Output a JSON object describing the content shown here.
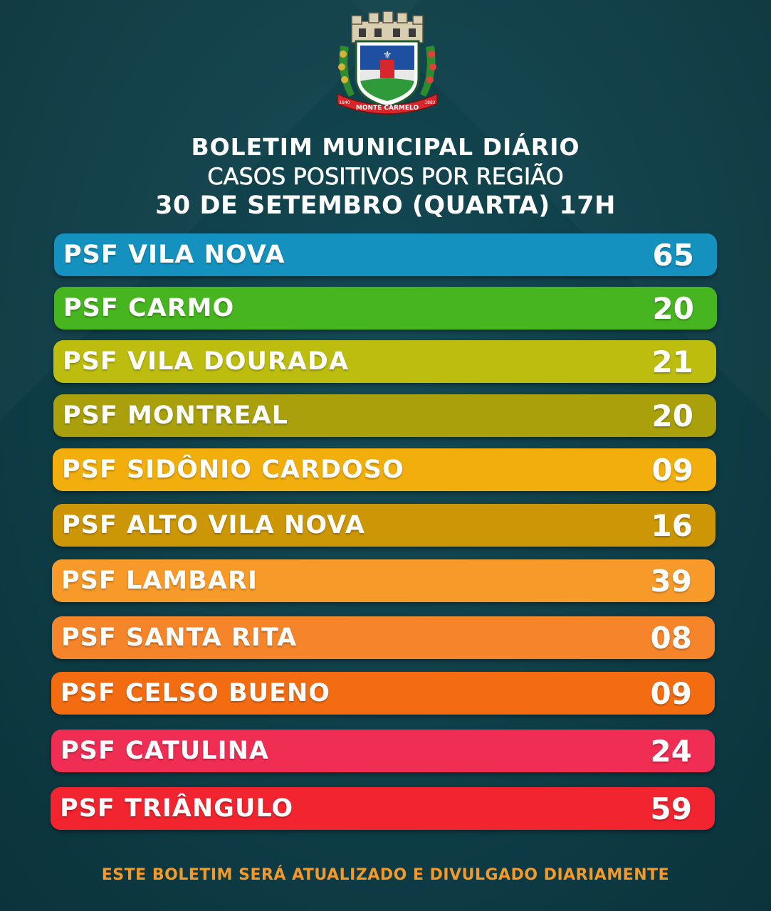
{
  "emblem": {
    "banner_text": "MONTE CARMELO",
    "year_left": "1840",
    "year_right": "1882"
  },
  "header": {
    "title": "BOLETIM MUNICIPAL DIÁRIO",
    "subtitle": "CASOS POSITIVOS POR REGIÃO",
    "date": "30 DE SETEMBRO (QUARTA) 17H"
  },
  "regions": [
    {
      "label": "PSF VILA NOVA",
      "value": "65",
      "color": "#1491be"
    },
    {
      "label": "PSF CARMO",
      "value": "20",
      "color": "#46b51f"
    },
    {
      "label": "PSF VILA DOURADA",
      "value": "21",
      "color": "#bcbd0e"
    },
    {
      "label": "PSF MONTREAL",
      "value": "20",
      "color": "#a9a00c"
    },
    {
      "label": "PSF SIDÔNIO CARDOSO",
      "value": "09",
      "color": "#f2ae0c"
    },
    {
      "label": "PSF ALTO VILA NOVA",
      "value": "16",
      "color": "#cc9606"
    },
    {
      "label": "PSF LAMBARI",
      "value": "39",
      "color": "#f89a2a"
    },
    {
      "label": "PSF SANTA RITA",
      "value": "08",
      "color": "#f6842a"
    },
    {
      "label": "PSF CELSO BUENO",
      "value": "09",
      "color": "#f46c12"
    },
    {
      "label": "PSF CATULINA",
      "value": "24",
      "color": "#f02d53"
    },
    {
      "label": "PSF TRIÂNGULO",
      "value": "59",
      "color": "#f22430"
    }
  ],
  "footer": "ESTE BOLETIM SERÁ ATUALIZADO E DIVULGADO DIARIAMENTE"
}
